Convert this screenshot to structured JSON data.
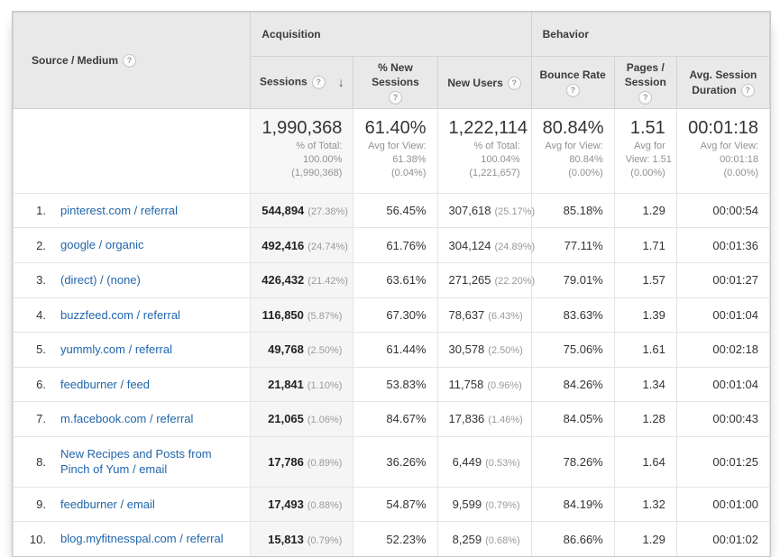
{
  "colors": {
    "link_blue": "#2266aa",
    "header_bg": "#e9e9e9",
    "sorted_column_bg": "#f5f5f5"
  },
  "header": {
    "row_dimension": "Source / Medium",
    "groups": {
      "acquisition": "Acquisition",
      "behavior": "Behavior"
    },
    "metrics": [
      {
        "key": "sessions",
        "label": "Sessions",
        "sorted": "desc"
      },
      {
        "key": "new_sessions",
        "label": "% New Sessions"
      },
      {
        "key": "new_users",
        "label": "New Users"
      },
      {
        "key": "bounce",
        "label": "Bounce Rate"
      },
      {
        "key": "pages",
        "label": "Pages / Session"
      },
      {
        "key": "duration",
        "label": "Avg. Session Duration"
      }
    ]
  },
  "totals": {
    "sessions": {
      "value": "1,990,368",
      "sub": [
        "% of Total:",
        "100.00%",
        "(1,990,368)"
      ]
    },
    "new_sessions": {
      "value": "61.40%",
      "sub": [
        "Avg for View:",
        "61.38%",
        "(0.04%)"
      ]
    },
    "new_users": {
      "value": "1,222,114",
      "sub": [
        "% of Total:",
        "100.04%",
        "(1,221,657)"
      ]
    },
    "bounce": {
      "value": "80.84%",
      "sub": [
        "Avg for View:",
        "80.84%",
        "(0.00%)"
      ]
    },
    "pages": {
      "value": "1.51",
      "sub": [
        "Avg for",
        "View: 1.51",
        "(0.00%)"
      ]
    },
    "duration": {
      "value": "00:01:18",
      "sub": [
        "Avg for View:",
        "00:01:18",
        "(0.00%)"
      ]
    }
  },
  "rows": [
    {
      "rank": "1.",
      "source": "pinterest.com / referral",
      "sessions": "544,894",
      "sessions_pct": "(27.38%)",
      "new_sessions": "56.45%",
      "new_users": "307,618",
      "new_users_pct": "(25.17%)",
      "bounce": "85.18%",
      "pages": "1.29",
      "duration": "00:00:54"
    },
    {
      "rank": "2.",
      "source": "google / organic",
      "sessions": "492,416",
      "sessions_pct": "(24.74%)",
      "new_sessions": "61.76%",
      "new_users": "304,124",
      "new_users_pct": "(24.89%)",
      "bounce": "77.11%",
      "pages": "1.71",
      "duration": "00:01:36"
    },
    {
      "rank": "3.",
      "source": "(direct) / (none)",
      "sessions": "426,432",
      "sessions_pct": "(21.42%)",
      "new_sessions": "63.61%",
      "new_users": "271,265",
      "new_users_pct": "(22.20%)",
      "bounce": "79.01%",
      "pages": "1.57",
      "duration": "00:01:27"
    },
    {
      "rank": "4.",
      "source": "buzzfeed.com / referral",
      "sessions": "116,850",
      "sessions_pct": "(5.87%)",
      "new_sessions": "67.30%",
      "new_users": "78,637",
      "new_users_pct": "(6.43%)",
      "bounce": "83.63%",
      "pages": "1.39",
      "duration": "00:01:04"
    },
    {
      "rank": "5.",
      "source": "yummly.com / referral",
      "sessions": "49,768",
      "sessions_pct": "(2.50%)",
      "new_sessions": "61.44%",
      "new_users": "30,578",
      "new_users_pct": "(2.50%)",
      "bounce": "75.06%",
      "pages": "1.61",
      "duration": "00:02:18"
    },
    {
      "rank": "6.",
      "source": "feedburner / feed",
      "sessions": "21,841",
      "sessions_pct": "(1.10%)",
      "new_sessions": "53.83%",
      "new_users": "11,758",
      "new_users_pct": "(0.96%)",
      "bounce": "84.26%",
      "pages": "1.34",
      "duration": "00:01:04"
    },
    {
      "rank": "7.",
      "source": "m.facebook.com / referral",
      "sessions": "21,065",
      "sessions_pct": "(1.06%)",
      "new_sessions": "84.67%",
      "new_users": "17,836",
      "new_users_pct": "(1.46%)",
      "bounce": "84.05%",
      "pages": "1.28",
      "duration": "00:00:43"
    },
    {
      "rank": "8.",
      "source": "New Recipes and Posts from Pinch of Yum / email",
      "sessions": "17,786",
      "sessions_pct": "(0.89%)",
      "new_sessions": "36.26%",
      "new_users": "6,449",
      "new_users_pct": "(0.53%)",
      "bounce": "78.26%",
      "pages": "1.64",
      "duration": "00:01:25"
    },
    {
      "rank": "9.",
      "source": "feedburner / email",
      "sessions": "17,493",
      "sessions_pct": "(0.88%)",
      "new_sessions": "54.87%",
      "new_users": "9,599",
      "new_users_pct": "(0.79%)",
      "bounce": "84.19%",
      "pages": "1.32",
      "duration": "00:01:00"
    },
    {
      "rank": "10.",
      "source": "blog.myfitnesspal.com / referral",
      "sessions": "15,813",
      "sessions_pct": "(0.79%)",
      "new_sessions": "52.23%",
      "new_users": "8,259",
      "new_users_pct": "(0.68%)",
      "bounce": "86.66%",
      "pages": "1.29",
      "duration": "00:01:02"
    }
  ]
}
